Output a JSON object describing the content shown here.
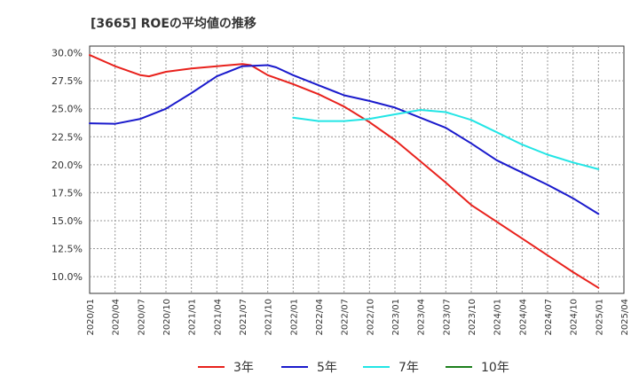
{
  "chart_data": {
    "type": "line",
    "title": "[3665]  ROEの平均値の推移",
    "xlabel": "",
    "ylabel": "",
    "ylim": [
      8.5,
      30.6
    ],
    "y_ticks": [
      "10.0%",
      "12.5%",
      "15.0%",
      "17.5%",
      "20.0%",
      "22.5%",
      "25.0%",
      "27.5%",
      "30.0%"
    ],
    "x_ticks": [
      "2020/01",
      "2020/04",
      "2020/07",
      "2020/10",
      "2021/01",
      "2021/04",
      "2021/07",
      "2021/10",
      "2022/01",
      "2022/04",
      "2022/07",
      "2022/10",
      "2023/01",
      "2023/04",
      "2023/07",
      "2023/10",
      "2024/01",
      "2024/04",
      "2024/07",
      "2024/10",
      "2025/01",
      "2025/04"
    ],
    "grid": true,
    "legend_position": "bottom",
    "series": [
      {
        "name": "3年",
        "color": "#e8211c",
        "points": [
          [
            "2020/01",
            29.8
          ],
          [
            "2020/04",
            28.8
          ],
          [
            "2020/07",
            28.0
          ],
          [
            "2020/08",
            27.9
          ],
          [
            "2020/10",
            28.3
          ],
          [
            "2021/01",
            28.6
          ],
          [
            "2021/04",
            28.8
          ],
          [
            "2021/07",
            29.0
          ],
          [
            "2021/08",
            28.9
          ],
          [
            "2021/10",
            28.0
          ],
          [
            "2022/01",
            27.2
          ],
          [
            "2022/04",
            26.3
          ],
          [
            "2022/07",
            25.2
          ],
          [
            "2022/10",
            23.8
          ],
          [
            "2023/01",
            22.2
          ],
          [
            "2023/04",
            20.3
          ],
          [
            "2023/07",
            18.4
          ],
          [
            "2023/10",
            16.4
          ],
          [
            "2024/01",
            14.9
          ],
          [
            "2024/04",
            13.4
          ],
          [
            "2024/07",
            11.9
          ],
          [
            "2024/10",
            10.4
          ],
          [
            "2025/01",
            9.0
          ]
        ]
      },
      {
        "name": "5年",
        "color": "#1a1acc",
        "points": [
          [
            "2020/01",
            23.7
          ],
          [
            "2020/04",
            23.65
          ],
          [
            "2020/07",
            24.1
          ],
          [
            "2020/10",
            25.0
          ],
          [
            "2021/01",
            26.4
          ],
          [
            "2021/04",
            27.9
          ],
          [
            "2021/07",
            28.8
          ],
          [
            "2021/10",
            28.9
          ],
          [
            "2021/11",
            28.7
          ],
          [
            "2022/01",
            28.0
          ],
          [
            "2022/04",
            27.1
          ],
          [
            "2022/07",
            26.2
          ],
          [
            "2022/10",
            25.7
          ],
          [
            "2023/01",
            25.1
          ],
          [
            "2023/04",
            24.2
          ],
          [
            "2023/07",
            23.3
          ],
          [
            "2023/10",
            21.9
          ],
          [
            "2024/01",
            20.4
          ],
          [
            "2024/04",
            19.3
          ],
          [
            "2024/07",
            18.2
          ],
          [
            "2024/10",
            17.0
          ],
          [
            "2025/01",
            15.6
          ]
        ]
      },
      {
        "name": "7年",
        "color": "#22e5e5",
        "points": [
          [
            "2022/01",
            24.2
          ],
          [
            "2022/04",
            23.9
          ],
          [
            "2022/07",
            23.9
          ],
          [
            "2022/10",
            24.1
          ],
          [
            "2023/01",
            24.5
          ],
          [
            "2023/04",
            24.9
          ],
          [
            "2023/07",
            24.7
          ],
          [
            "2023/10",
            24.0
          ],
          [
            "2024/01",
            22.9
          ],
          [
            "2024/04",
            21.8
          ],
          [
            "2024/07",
            20.9
          ],
          [
            "2024/10",
            20.2
          ],
          [
            "2025/01",
            19.6
          ]
        ]
      },
      {
        "name": "10年",
        "color": "#1d7f1d",
        "points": []
      }
    ]
  }
}
